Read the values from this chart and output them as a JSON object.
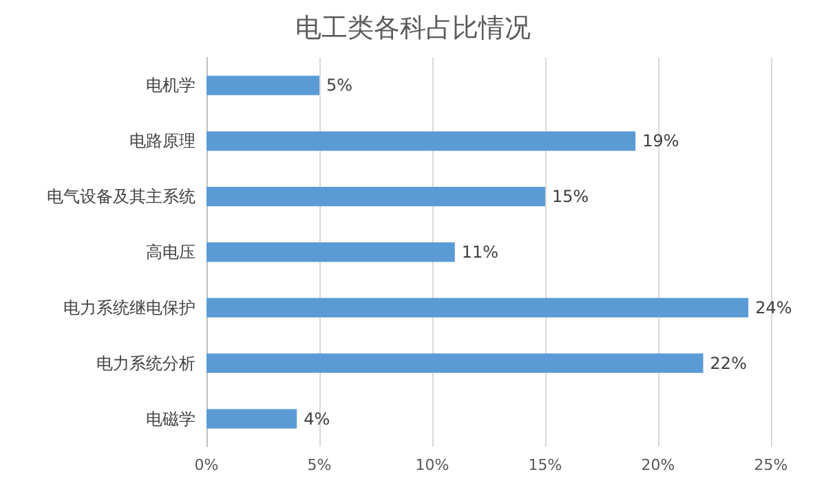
{
  "chart_data": {
    "type": "bar",
    "orientation": "horizontal",
    "title": "电工类各科占比情况",
    "categories": [
      "电机学",
      "电路原理",
      "电气设备及其主系统",
      "高电压",
      "电力系统继电保护",
      "电力系统分析",
      "电磁学"
    ],
    "values": [
      5,
      19,
      15,
      11,
      24,
      22,
      4
    ],
    "value_labels": [
      "5%",
      "19%",
      "15%",
      "11%",
      "24%",
      "22%",
      "4%"
    ],
    "color": "#5b9bd5",
    "xlim": [
      0,
      25
    ],
    "xticks": [
      {
        "value": 0,
        "label": "0%"
      },
      {
        "value": 5,
        "label": "5%"
      },
      {
        "value": 10,
        "label": "10%"
      },
      {
        "value": 15,
        "label": "15%"
      },
      {
        "value": 20,
        "label": "20%"
      },
      {
        "value": 25,
        "label": "25%"
      }
    ],
    "grid": "x"
  }
}
